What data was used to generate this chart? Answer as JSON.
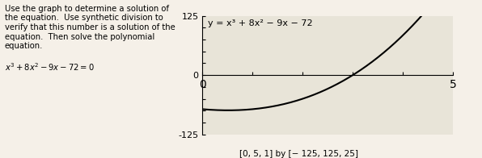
{
  "title_text": "y = x³ + 8x² − 9x − 72",
  "xmin": 0,
  "xmax": 5,
  "xtick_step": 1,
  "ymin": -125,
  "ymax": 125,
  "ytick_step": 25,
  "window_label": "[0, 5, 1] by [− 125, 125, 25]",
  "curve_color": "#000000",
  "bg_color": "#f5f0e8",
  "plot_bg_color": "#e8e4d8",
  "label_125": "125",
  "label_neg125": "-125",
  "label_0": "0",
  "label_5": "5"
}
